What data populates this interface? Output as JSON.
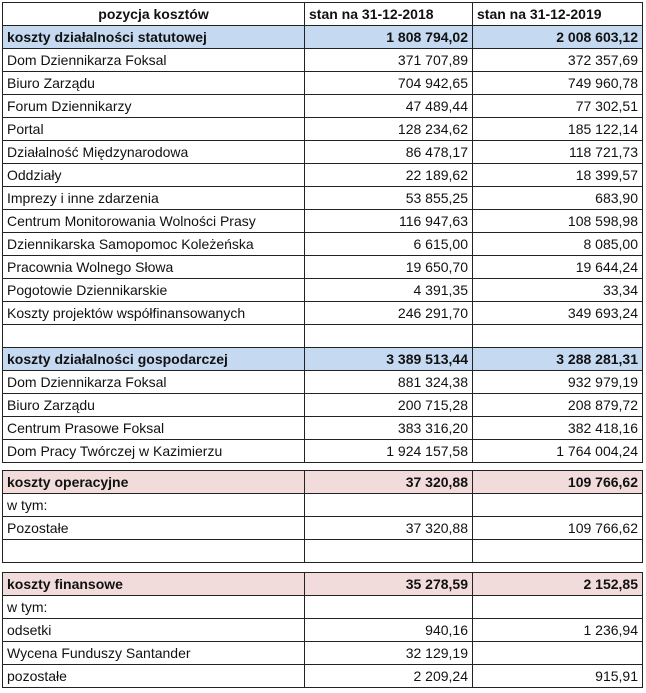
{
  "header": {
    "col_item": "pozycja kosztów",
    "col_2018": "stan na 31-12-2018",
    "col_2019": "stan na 31-12-2019"
  },
  "colors": {
    "section_blue": "#c5d9f1",
    "section_pink": "#f2dcdb"
  },
  "tables": [
    {
      "rows": [
        {
          "label": "koszty działalności statutowej",
          "v2018": "1 808 794,02",
          "v2019": "2 008 603,12",
          "style": "blue"
        },
        {
          "label": "Dom Dziennikarza Foksal",
          "v2018": "371 707,89",
          "v2019": "372 357,69"
        },
        {
          "label": "Biuro Zarządu",
          "v2018": "704 942,65",
          "v2019": "749 960,78"
        },
        {
          "label": "Forum Dziennikarzy",
          "v2018": "47 489,44",
          "v2019": "77 302,51"
        },
        {
          "label": "Portal",
          "v2018": "128 234,62",
          "v2019": "185 122,14"
        },
        {
          "label": "Działalność Międzynarodowa",
          "v2018": "86 478,17",
          "v2019": "118 721,73"
        },
        {
          "label": "Oddziały",
          "v2018": "22 189,62",
          "v2019": "18 399,57"
        },
        {
          "label": "Imprezy i inne zdarzenia",
          "v2018": "53 855,25",
          "v2019": "683,90"
        },
        {
          "label": "Centrum Monitorowania Wolności Prasy",
          "v2018": "116 947,63",
          "v2019": "108 598,98"
        },
        {
          "label": "Dziennikarska Samopomoc Koleżeńska",
          "v2018": "6 615,00",
          "v2019": "8 085,00"
        },
        {
          "label": "Pracownia Wolnego Słowa",
          "v2018": "19 650,70",
          "v2019": "19 644,24"
        },
        {
          "label": "Pogotowie Dziennikarskie",
          "v2018": "4 391,35",
          "v2019": "33,34"
        },
        {
          "label": "Koszty projektów współfinansowanych",
          "v2018": "246 291,70",
          "v2019": "349 693,24"
        },
        {
          "label": "",
          "v2018": "",
          "v2019": ""
        },
        {
          "label": "koszty działalności gospodarczej",
          "v2018": "3 389 513,44",
          "v2019": "3 288 281,31",
          "style": "blue"
        },
        {
          "label": "Dom Dziennikarza Foksal",
          "v2018": "881 324,38",
          "v2019": "932 979,19"
        },
        {
          "label": "Biuro Zarządu",
          "v2018": "200 715,28",
          "v2019": "208 879,72"
        },
        {
          "label": "Centrum Prasowe Foksal",
          "v2018": "383 316,20",
          "v2019": "382 418,16"
        },
        {
          "label": "Dom Pracy Twórczej w Kazimierzu",
          "v2018": "1 924 157,58",
          "v2019": "1 764 004,24"
        }
      ]
    },
    {
      "rows": [
        {
          "label": "koszty operacyjne",
          "v2018": "37 320,88",
          "v2019": "109 766,62",
          "style": "pink"
        },
        {
          "label": "w tym:",
          "v2018": "",
          "v2019": ""
        },
        {
          "label": "Pozostałe",
          "v2018": "37 320,88",
          "v2019": "109 766,62"
        },
        {
          "label": "",
          "v2018": "",
          "v2019": ""
        }
      ]
    },
    {
      "rows": [
        {
          "label": "koszty finansowe",
          "v2018": "35 278,59",
          "v2019": "2 152,85",
          "style": "pink"
        },
        {
          "label": "w tym:",
          "v2018": "",
          "v2019": ""
        },
        {
          "label": "odsetki",
          "v2018": "940,16",
          "v2019": "1 236,94"
        },
        {
          "label": "Wycena Funduszy Santander",
          "v2018": "32 129,19",
          "v2019": ""
        },
        {
          "label": "pozostałe",
          "v2018": "2 209,24",
          "v2019": "915,91"
        }
      ]
    }
  ]
}
